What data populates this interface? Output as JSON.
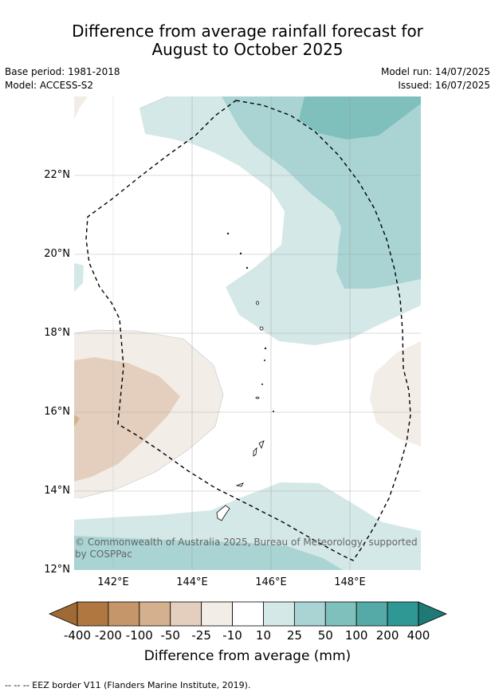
{
  "header": {
    "title_line1": "Difference from average rainfall forecast for",
    "title_line2": "August to October 2025",
    "base_period": "Base period: 1981-2018",
    "model": "Model: ACCESS-S2",
    "model_run": "Model run: 14/07/2025",
    "issued": "Issued: 16/07/2025"
  },
  "map": {
    "lat_labels": [
      "22°N",
      "20°N",
      "18°N",
      "16°N",
      "14°N",
      "12°N"
    ],
    "lon_labels": [
      "142°E",
      "144°E",
      "146°E",
      "148°E"
    ],
    "copyright_line1": "© Commonwealth of Australia 2025, Bureau of Meteorology, supported",
    "copyright_line2": "by COSPPac"
  },
  "legend": {
    "ticks": [
      "-400",
      "-200",
      "-100",
      "-50",
      "-25",
      "-10",
      "10",
      "25",
      "50",
      "100",
      "200",
      "400"
    ],
    "colors": [
      "#a06a37",
      "#b07840",
      "#c4966a",
      "#d4b08e",
      "#e4cfbe",
      "#f3ede7",
      "#ffffff",
      "#d4e8e7",
      "#a9d4d3",
      "#7fc0bd",
      "#55aaa8",
      "#2f9894",
      "#1f7a76"
    ],
    "title": "Difference from average (mm)"
  },
  "footnote": "--  --  -- EEZ border V11 (Flanders Marine Institute, 2019)."
}
